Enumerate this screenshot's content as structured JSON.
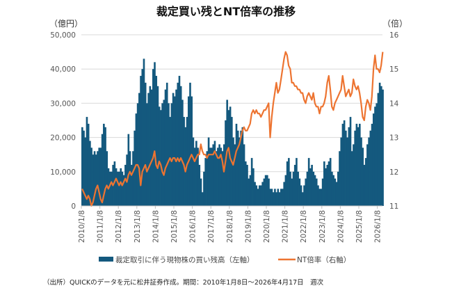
{
  "chart_data": {
    "type": "bar+line",
    "title": "裁定買い残とNT倍率の推移",
    "left_unit": "（億円）",
    "right_unit": "（倍）",
    "left_ylim": [
      0,
      50000
    ],
    "right_ylim": [
      11,
      16
    ],
    "left_ticks": [
      "0",
      "10,000",
      "20,000",
      "30,000",
      "40,000",
      "50,000"
    ],
    "left_tick_values": [
      0,
      10000,
      20000,
      30000,
      40000,
      50000
    ],
    "right_ticks": [
      "11",
      "12",
      "13",
      "14",
      "15",
      "16"
    ],
    "right_tick_values": [
      11,
      12,
      13,
      14,
      15,
      16
    ],
    "x_ticks": [
      "2010/1/8",
      "2011/1/8",
      "2012/1/8",
      "2013/1/8",
      "2014/1/8",
      "2015/1/8",
      "2016/1/8",
      "2017/1/8",
      "2018/1/8",
      "2019/1/8",
      "2020/1/8",
      "2021/1/8",
      "2022/1/8",
      "2023/1/8",
      "2024/1/8",
      "2025/1/8",
      "2026/1/8"
    ],
    "x_range": [
      "2010/1/8",
      "2026/4/17"
    ],
    "grid": "horizontal",
    "legend_position": "bottom",
    "series": [
      {
        "name": "裁定取引に伴う現物株の買い残高（左軸）",
        "type": "bar",
        "axis": "left",
        "color": "#14597e",
        "unit": "億円",
        "monthly_by_year": [
          {
            "year": 2010,
            "values": [
              23000,
              22000,
              20000,
              26000,
              24000,
              19000,
              17000,
              15000,
              16000,
              15000,
              16000,
              17000
            ]
          },
          {
            "year": 2011,
            "values": [
              17000,
              21000,
              24000,
              23000,
              16000,
              11000,
              10000,
              10000,
              12000,
              13000,
              11000,
              10000
            ]
          },
          {
            "year": 2012,
            "values": [
              10000,
              11000,
              10000,
              9000,
              12000,
              15000,
              21000,
              16000,
              12000,
              16000,
              22000,
              27000
            ]
          },
          {
            "year": 2013,
            "values": [
              30000,
              33000,
              38000,
              40000,
              43000,
              36000,
              30000,
              33000,
              35000,
              34000,
              40000,
              42000
            ]
          },
          {
            "year": 2014,
            "values": [
              38000,
              35000,
              29000,
              28000,
              30000,
              31000,
              34000,
              36000,
              30000,
              26000,
              30000,
              33000
            ]
          },
          {
            "year": 2015,
            "values": [
              32000,
              34000,
              36000,
              38000,
              35000,
              31000,
              26000,
              23000,
              26000,
              32000,
              36000,
              32000
            ]
          },
          {
            "year": 2016,
            "values": [
              20000,
              17000,
              19000,
              17000,
              12000,
              8000,
              4000,
              10000,
              14000,
              16000,
              20000,
              17000
            ]
          },
          {
            "year": 2017,
            "values": [
              17000,
              18000,
              19000,
              16000,
              17000,
              18000,
              17000,
              16000,
              18000,
              25000,
              31000,
              28000
            ]
          },
          {
            "year": 2018,
            "values": [
              29000,
              26000,
              20000,
              18000,
              24000,
              22000,
              20000,
              22000,
              23000,
              18000,
              13000,
              12000
            ]
          },
          {
            "year": 2019,
            "values": [
              8000,
              9000,
              14000,
              11000,
              7000,
              6000,
              5000,
              6000,
              6000,
              7000,
              8000,
              9000
            ]
          },
          {
            "year": 2020,
            "values": [
              9000,
              8000,
              5000,
              5000,
              4000,
              5000,
              4000,
              5000,
              4000,
              5000,
              5000,
              7000
            ]
          },
          {
            "year": 2021,
            "values": [
              9000,
              13000,
              14000,
              10000,
              8000,
              10000,
              12000,
              14000,
              10000,
              8000,
              6000,
              4000
            ]
          },
          {
            "year": 2022,
            "values": [
              6000,
              8000,
              10000,
              14000,
              11000,
              12000,
              10000,
              9000,
              8000,
              6000,
              5000,
              5000
            ]
          },
          {
            "year": 2023,
            "values": [
              8000,
              13000,
              11000,
              12000,
              13000,
              14000,
              10000,
              9000,
              8000,
              7000,
              10000,
              16000
            ]
          },
          {
            "year": 2024,
            "values": [
              20000,
              24000,
              25000,
              22000,
              20000,
              23000,
              26000,
              16000,
              18000,
              22000,
              24000,
              23000
            ]
          },
          {
            "year": 2025,
            "values": [
              24000,
              20000,
              17000,
              12000,
              14000,
              18000,
              20000,
              22000,
              24000,
              27000,
              29000,
              30000
            ]
          },
          {
            "year": 2026,
            "values": [
              33000,
              36000,
              35000,
              34000
            ]
          }
        ]
      },
      {
        "name": "NT倍率（右軸）",
        "type": "line",
        "axis": "right",
        "color": "#ed7431",
        "unit": "倍",
        "monthly_by_year": [
          {
            "year": 2010,
            "values": [
              11.5,
              11.4,
              11.3,
              11.2,
              11.3,
              11.2,
              11.0,
              11.1,
              11.3,
              11.5,
              11.6,
              11.4
            ]
          },
          {
            "year": 2011,
            "values": [
              11.2,
              11.1,
              11.3,
              11.5,
              11.6,
              11.5,
              11.6,
              11.7,
              11.6,
              11.7,
              11.8,
              11.7
            ]
          },
          {
            "year": 2012,
            "values": [
              11.6,
              11.7,
              11.6,
              11.7,
              11.8,
              11.7,
              11.9,
              12.0,
              11.9,
              12.0,
              12.1,
              12.2
            ]
          },
          {
            "year": 2013,
            "values": [
              12.2,
              12.1,
              11.6,
              12.0,
              12.1,
              12.2,
              12.0,
              12.1,
              12.2,
              12.3,
              12.4,
              12.6
            ]
          },
          {
            "year": 2014,
            "values": [
              12.2,
              12.1,
              12.3,
              12.2,
              12.0,
              11.9,
              12.1,
              12.2,
              12.3,
              12.4,
              12.3,
              12.4
            ]
          },
          {
            "year": 2015,
            "values": [
              12.4,
              12.3,
              12.4,
              12.3,
              12.4,
              12.3,
              12.2,
              12.0,
              12.2,
              12.3,
              12.4,
              12.5
            ]
          },
          {
            "year": 2016,
            "values": [
              12.4,
              12.3,
              12.4,
              12.5,
              12.5,
              12.8,
              12.6,
              12.5,
              12.5,
              12.4,
              12.5,
              12.5
            ]
          },
          {
            "year": 2017,
            "values": [
              12.5,
              12.5,
              12.6,
              12.5,
              12.4,
              12.4,
              12.5,
              12.3,
              12.0,
              12.3,
              12.6,
              12.7
            ]
          },
          {
            "year": 2018,
            "values": [
              12.4,
              12.3,
              12.2,
              12.4,
              12.6,
              12.7,
              12.8,
              13.0,
              13.2,
              13.3,
              13.2,
              13.2
            ]
          },
          {
            "year": 2019,
            "values": [
              13.3,
              13.4,
              13.7,
              13.8,
              13.7,
              13.8,
              13.7,
              13.7,
              13.6,
              13.7,
              13.8,
              13.8
            ]
          },
          {
            "year": 2020,
            "values": [
              13.9,
              14.0,
              13.0,
              13.6,
              14.0,
              14.3,
              14.6,
              14.3,
              14.4,
              14.7,
              15.0,
              15.3
            ]
          },
          {
            "year": 2021,
            "values": [
              15.5,
              15.4,
              15.1,
              15.0,
              14.6,
              14.6,
              14.5,
              14.5,
              14.4,
              14.4,
              14.3,
              14.3
            ]
          },
          {
            "year": 2022,
            "values": [
              14.1,
              14.0,
              14.2,
              14.3,
              14.2,
              14.1,
              14.3,
              14.0,
              13.9,
              13.9,
              13.7,
              13.9
            ]
          },
          {
            "year": 2023,
            "values": [
              13.9,
              14.0,
              14.2,
              14.6,
              14.8,
              14.4,
              13.9,
              13.8,
              14.0,
              14.1,
              14.2,
              14.3
            ]
          },
          {
            "year": 2024,
            "values": [
              14.4,
              14.8,
              14.5,
              14.2,
              14.3,
              14.4,
              14.2,
              14.3,
              14.7,
              14.5,
              14.4,
              14.5
            ]
          },
          {
            "year": 2025,
            "values": [
              14.3,
              14.0,
              13.6,
              13.5,
              13.9,
              14.1,
              14.0,
              13.8,
              14.2,
              15.0,
              15.4,
              15.0
            ]
          },
          {
            "year": 2026,
            "values": [
              15.0,
              14.9,
              15.1,
              15.5
            ]
          }
        ]
      }
    ],
    "legend": [
      "裁定取引に伴う現物株の買い残高（左軸）",
      "NT倍率（右軸）"
    ],
    "source_note": "（出所）QUICKのデータを元に松井証券作成。期間：2010年1月8日～2026年4月17日　週次"
  }
}
